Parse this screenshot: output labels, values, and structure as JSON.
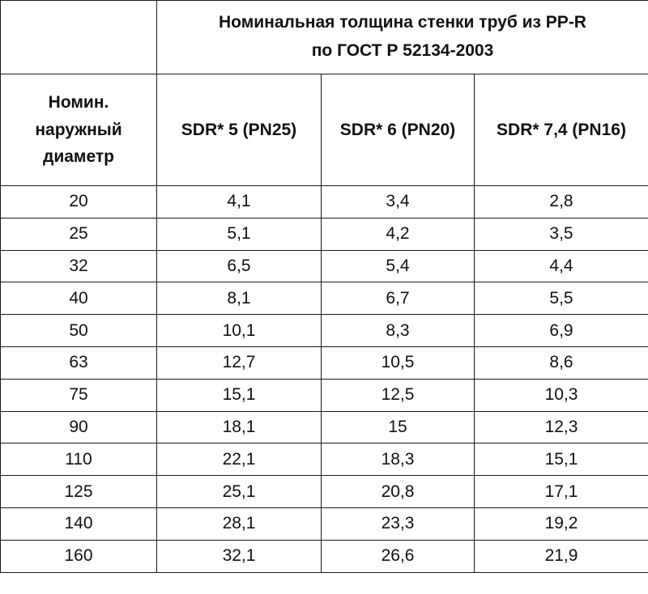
{
  "table": {
    "title_line1": "Номинальная толщина стенки труб из PP-R",
    "title_line2": "по ГОСТ Р 52134-2003",
    "diameter_header": [
      "Номин.",
      "наружный",
      "диаметр"
    ],
    "columns": [
      "SDR* 5 (PN25)",
      "SDR* 6 (PN20)",
      "SDR* 7,4 (PN16)"
    ],
    "rows": [
      [
        "20",
        "4,1",
        "3,4",
        "2,8"
      ],
      [
        "25",
        "5,1",
        "4,2",
        "3,5"
      ],
      [
        "32",
        "6,5",
        "5,4",
        "4,4"
      ],
      [
        "40",
        "8,1",
        "6,7",
        "5,5"
      ],
      [
        "50",
        "10,1",
        "8,3",
        "6,9"
      ],
      [
        "63",
        "12,7",
        "10,5",
        "8,6"
      ],
      [
        "75",
        "15,1",
        "12,5",
        "10,3"
      ],
      [
        "90",
        "18,1",
        "15",
        "12,3"
      ],
      [
        "110",
        "22,1",
        "18,3",
        "15,1"
      ],
      [
        "125",
        "25,1",
        "20,8",
        "17,1"
      ],
      [
        "140",
        "28,1",
        "23,3",
        "19,2"
      ],
      [
        "160",
        "32,1",
        "26,6",
        "21,9"
      ]
    ]
  }
}
